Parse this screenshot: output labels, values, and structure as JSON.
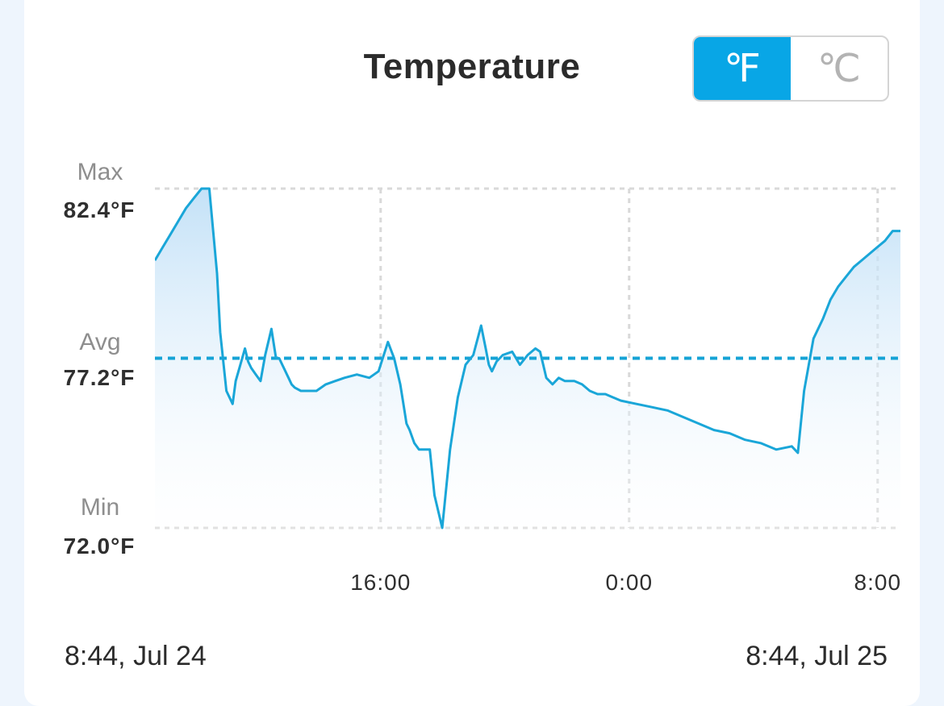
{
  "header": {
    "title": "Temperature",
    "units": [
      {
        "label": "℉",
        "active": true
      },
      {
        "label": "℃",
        "active": false
      }
    ]
  },
  "y_labels": {
    "max_label": "Max",
    "max_value": "82.4°F",
    "avg_label": "Avg",
    "avg_value": "77.2°F",
    "min_label": "Min",
    "min_value": "72.0°F"
  },
  "range": {
    "start": "8:44,  Jul 24",
    "end": "8:44,  Jul 25"
  },
  "colors": {
    "accent": "#08a6e6",
    "line": "#1aa6d8",
    "avg_line": "#15a3d6",
    "grid": "#d9d9d9"
  },
  "chart_data": {
    "type": "area",
    "title": "Temperature",
    "unit": "°F",
    "x_start": "8:44, Jul 24",
    "x_end": "8:44, Jul 25",
    "x_ticks": [
      "16:00",
      "0:00",
      "8:00"
    ],
    "ylim": [
      72.0,
      82.4
    ],
    "max": 82.4,
    "avg": 77.2,
    "min": 72.0,
    "grid": true,
    "series": [
      {
        "x_hours": [
          0,
          0.25,
          0.5,
          0.75,
          1.0,
          1.25,
          1.5,
          1.75,
          2.0,
          2.1,
          2.3,
          2.5,
          2.6,
          2.75,
          2.9,
          3.0,
          3.1,
          3.25,
          3.4,
          3.55,
          3.75,
          3.9,
          4.0,
          4.15,
          4.3,
          4.4,
          4.5,
          4.7,
          4.9,
          5.2,
          5.5,
          5.8,
          6.1,
          6.5,
          6.9,
          7.2,
          7.5,
          7.7,
          7.9,
          8.0,
          8.1,
          8.2,
          8.35,
          8.5,
          8.65,
          8.85,
          9.0,
          9.25,
          9.5,
          9.75,
          10.0,
          10.25,
          10.5,
          10.65,
          10.75,
          10.85,
          11.0,
          11.2,
          11.5,
          11.75,
          12.0,
          12.25,
          12.4,
          12.5,
          12.6,
          12.8,
          13.0,
          13.2,
          13.5,
          13.75,
          14.0,
          14.25,
          14.5,
          14.75,
          15.0,
          15.5,
          16.0,
          16.5,
          17.0,
          17.5,
          18.0,
          18.5,
          19.0,
          19.5,
          20.0,
          20.5,
          20.7,
          20.9,
          21.2,
          21.5,
          21.75,
          22.0,
          22.25,
          22.5,
          22.75,
          23.0,
          23.25,
          23.5,
          23.75,
          24.0
        ],
        "values": [
          80.2,
          80.6,
          81.0,
          81.4,
          81.8,
          82.1,
          82.4,
          82.4,
          79.8,
          78.0,
          76.2,
          75.8,
          76.5,
          77.0,
          77.5,
          77.1,
          76.9,
          76.7,
          76.5,
          77.3,
          78.1,
          77.2,
          77.2,
          76.9,
          76.6,
          76.4,
          76.3,
          76.2,
          76.2,
          76.2,
          76.4,
          76.5,
          76.6,
          76.7,
          76.6,
          76.8,
          77.7,
          77.2,
          76.4,
          75.8,
          75.2,
          75.0,
          74.6,
          74.4,
          74.4,
          74.4,
          73.0,
          72.0,
          74.4,
          76.0,
          77.0,
          77.3,
          78.2,
          77.5,
          77.0,
          76.8,
          77.1,
          77.3,
          77.4,
          77.0,
          77.3,
          77.5,
          77.4,
          77.0,
          76.6,
          76.4,
          76.6,
          76.5,
          76.5,
          76.4,
          76.2,
          76.1,
          76.1,
          76.0,
          75.9,
          75.8,
          75.7,
          75.6,
          75.4,
          75.2,
          75.0,
          74.9,
          74.7,
          74.6,
          74.4,
          74.5,
          74.3,
          76.2,
          77.8,
          78.4,
          79.0,
          79.4,
          79.7,
          80.0,
          80.2,
          80.4,
          80.6,
          80.8,
          81.1,
          81.1
        ]
      }
    ]
  }
}
